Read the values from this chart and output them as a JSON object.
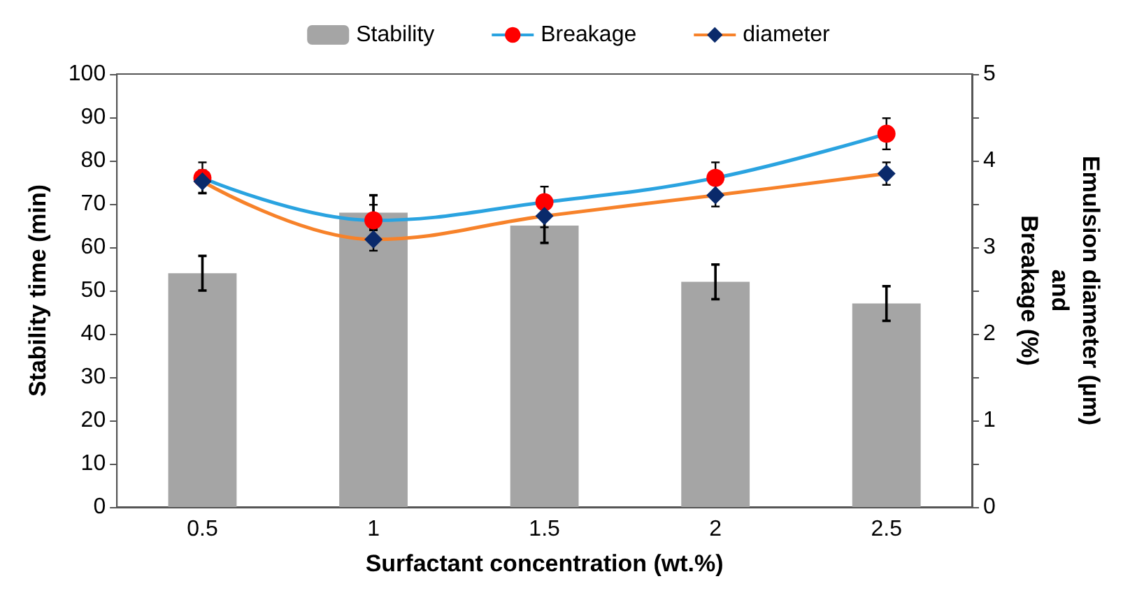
{
  "chart_data": {
    "type": "bar",
    "xlabel": "Surfactant concentration (wt.%)",
    "ylabel": "Stability time (min)",
    "y2label": "Emulsion diameter (µm)\nand\nBreakage (%)",
    "categories": [
      "0.5",
      "1",
      "1.5",
      "2",
      "2.5"
    ],
    "series": [
      {
        "name": "Stability",
        "color": "#a5a5a5",
        "values": [
          54,
          68,
          65,
          52,
          47
        ],
        "errors": [
          4,
          4,
          4,
          4,
          4
        ]
      },
      {
        "name": "Breakage",
        "type": "line",
        "axis": "y2",
        "color": "#2aa3e0",
        "colors": [
          "#ff0000",
          "#ff0000",
          "#ff0000",
          "#ff0000",
          "#ff0000"
        ],
        "marker": "circle",
        "values": [
          3.8,
          3.31,
          3.52,
          3.8,
          4.31
        ],
        "errors": [
          0.18,
          0.18,
          0.18,
          0.18,
          0.18
        ]
      },
      {
        "name": "diameter",
        "type": "line",
        "axis": "y2",
        "color": "#f7822a",
        "colors": [
          "#0a2a6b",
          "#0a2a6b",
          "#0a2a6b",
          "#0a2a6b",
          "#0a2a6b"
        ],
        "marker": "diamond",
        "values": [
          3.76,
          3.09,
          3.36,
          3.6,
          3.85
        ],
        "errors": [
          0.13,
          0.13,
          0.13,
          0.13,
          0.13
        ]
      }
    ],
    "ylim": [
      0,
      100
    ],
    "yticks": [
      0,
      10,
      20,
      30,
      40,
      50,
      60,
      70,
      80,
      90,
      100
    ],
    "y2lim": [
      0,
      5
    ],
    "y2ticks": [
      0,
      {
        "value": 0.5,
        "label": null
      },
      1,
      {
        "value": 1.5,
        "label": null
      },
      2,
      {
        "value": 2.5,
        "label": null
      },
      3,
      {
        "value": 3.5,
        "label": null
      },
      4,
      {
        "value": 4.5,
        "label": null
      },
      5
    ],
    "grid": false,
    "legend": "top"
  }
}
